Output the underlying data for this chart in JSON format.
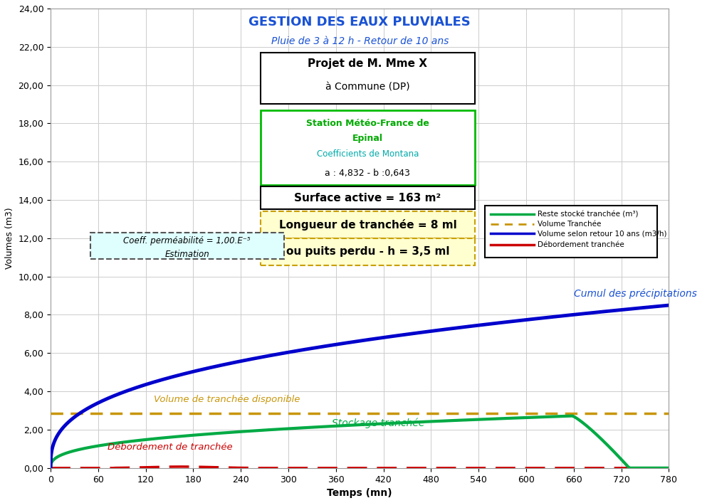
{
  "title_main": "GESTION DES EAUX PLUVIALES",
  "title_sub": "Pluie de 3 à 12 h - Retour de 10 ans",
  "title_color_main": "#1A52D4",
  "title_color_sub": "#1A52D4",
  "ylabel": "Volumes (m3)",
  "xlabel": "Temps (mn)",
  "ylim": [
    0,
    24
  ],
  "xlim": [
    0,
    780
  ],
  "yticks": [
    0,
    2,
    4,
    6,
    8,
    10,
    12,
    14,
    16,
    18,
    20,
    22,
    24
  ],
  "ytick_labels": [
    "0,00",
    "2,00",
    "4,00",
    "6,00",
    "8,00",
    "10,00",
    "12,00",
    "14,00",
    "16,00",
    "18,00",
    "20,00",
    "22,00",
    "24,00"
  ],
  "xticks": [
    0,
    60,
    120,
    180,
    240,
    300,
    360,
    420,
    480,
    540,
    600,
    660,
    720,
    780
  ],
  "volume_tranchee": 2.85,
  "blue_curve_label": "Cumul des précipitations",
  "green_curve_label": "Stockage tranchée",
  "brown_line_label": "Volume de tranchée disponible",
  "red_line_label": "Débordement de tranchée",
  "box1_text1": "Projet de M. Mme X",
  "box1_text2": "à Commune (DP)",
  "box2_text1": "Station Météo-France de",
  "box2_text2": "Epinal",
  "box2_text3": "Coefficients de Montana",
  "box2_text4": "a : 4,832 - b :0,643",
  "box3_text": "Surface active = 163 m²",
  "box4_text": "Longueur de tranchée = 8 ml",
  "box5_text": "ou puits perdu - h = 3,5 ml",
  "box6_text1": "Coeff. perméabilité = 1,00.E⁻⁵",
  "box6_text2": "Estimation",
  "bg_color": "#FFFFFF",
  "grid_color": "#CCCCCC"
}
